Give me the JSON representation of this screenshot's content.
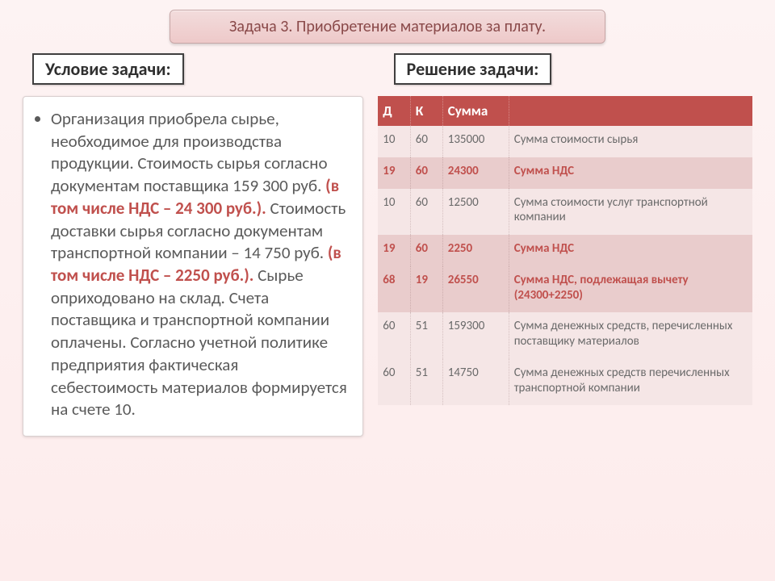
{
  "title": "Задача 3. Приобретение материалов за плату.",
  "subheaders": {
    "left": "Условие задачи:",
    "right": "Решение задачи:"
  },
  "problem": {
    "p1": "Организация приобрела сырье, необходимое для производства продукции. Стоимость сырья согласно документам поставщика 159 300 руб. ",
    "hl1": "(в том числе НДС – 24 300 руб.).",
    "p2": " Стоимость доставки сырья согласно документам транспортной компании – 14 750 руб. ",
    "hl2": "(в том числе НДС – 2250 руб.).",
    "p3": " Сырье оприходовано на склад. Счета поставщика и транспортной компании оплачены. Согласно учетной политике предприятия фактическая себестоимость материалов формируется на счете 10."
  },
  "table": {
    "headers": {
      "d": "Д",
      "k": "К",
      "sum": "Сумма",
      "desc": ""
    },
    "col_widths": {
      "d": 40,
      "k": 40,
      "sum": 82
    },
    "header_bg": "#c0504d",
    "header_fg": "#ffffff",
    "row_light_bg": "#f5e6e6",
    "row_dark_bg": "#e9cccc",
    "accent_fg": "#c0504d",
    "rows": [
      {
        "style": "light",
        "d": "10",
        "k": "60",
        "sum": "135000",
        "desc": "Сумма стоимости сырья"
      },
      {
        "style": "dark",
        "d": "19",
        "k": "60",
        "sum": "24300",
        "desc": "Сумма НДС"
      },
      {
        "style": "light",
        "d": "10",
        "k": "60",
        "sum": "12500",
        "desc": "Сумма стоимости услуг транспортной компании"
      },
      {
        "style": "dark",
        "d": "19",
        "k": "60",
        "sum": "2250",
        "desc": "Сумма НДС"
      },
      {
        "style": "dark",
        "d": "68",
        "k": "19",
        "sum": "26550",
        "desc": "Сумма НДС, подлежащая вычету (24300+2250)"
      },
      {
        "style": "light",
        "d": "60",
        "k": "51",
        "sum": "159300",
        "desc": "Сумма денежных средств, перечисленных поставщику материалов"
      },
      {
        "style": "light",
        "d": "60",
        "k": "51",
        "sum": "14750",
        "desc": "Сумма денежных средств перечисленных транспортной компании"
      }
    ]
  },
  "style": {
    "slide_bg_top": "#fdf3f3",
    "slide_bg_bottom": "#fdecec",
    "title_bg": "#eec9c9",
    "title_fg": "#8a4a4a",
    "body_fg": "#5a5a5a",
    "title_fontsize": 20,
    "sub_fontsize": 22,
    "body_fontsize": 21,
    "table_fontsize": 15
  }
}
